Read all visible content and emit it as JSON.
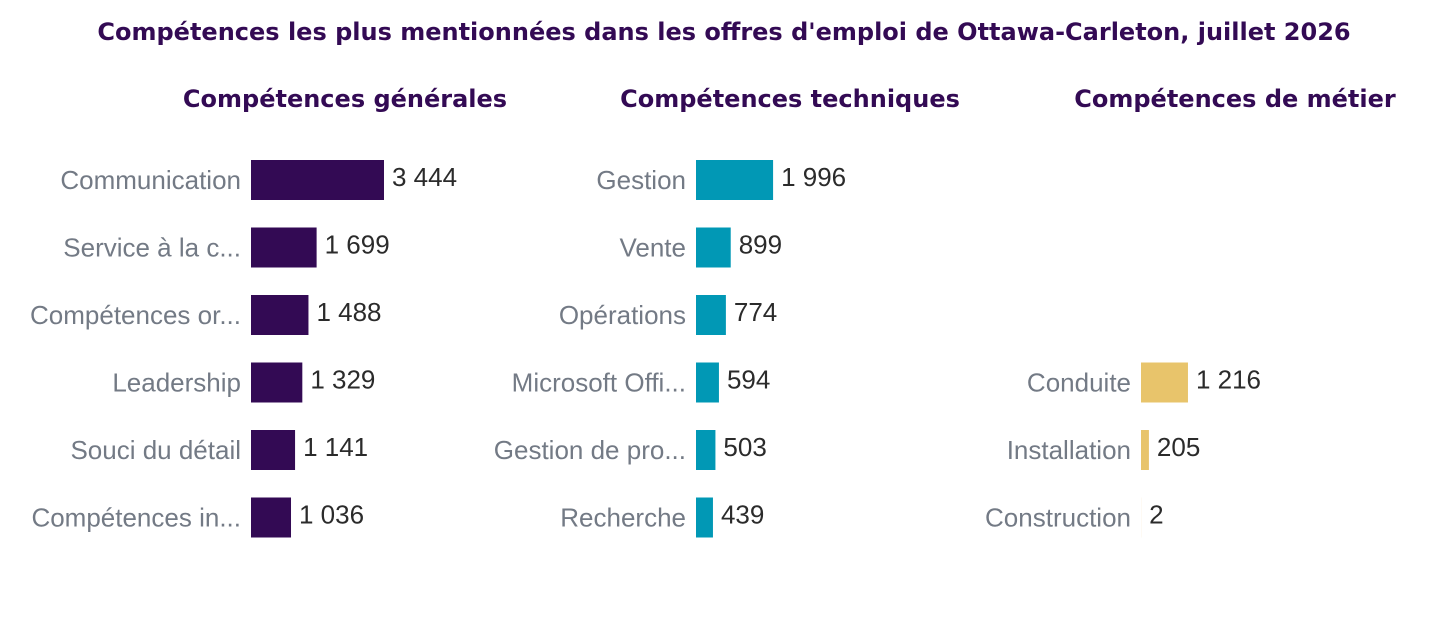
{
  "colors": {
    "title": "#330a54",
    "category_label": "#737a85",
    "value_label": "#2b2b2b",
    "background": "#ffffff"
  },
  "chart_data": {
    "type": "bar",
    "orientation": "horizontal",
    "title": "Compétences les plus mentionnées dans les offres d'emploi de Ottawa-Carleton, juillet 2026",
    "grid": false,
    "shared_x_scale": true,
    "panels": [
      {
        "title": "Compétences générales",
        "color": "#330a54",
        "categories": [
          "Communication",
          "Service à la c...",
          "Compétences or...",
          "Leadership",
          "Souci du détail",
          "Compétences in..."
        ],
        "values": [
          3444,
          1699,
          1488,
          1329,
          1141,
          1036
        ],
        "value_labels": [
          "3 444",
          "1 699",
          "1 488",
          "1 329",
          "1 141",
          "1 036"
        ]
      },
      {
        "title": "Compétences techniques",
        "color": "#0198b5",
        "categories": [
          "Gestion",
          "Vente",
          "Opérations",
          "Microsoft Offi...",
          "Gestion de pro...",
          "Recherche"
        ],
        "values": [
          1996,
          899,
          774,
          594,
          503,
          439
        ],
        "value_labels": [
          "1 996",
          "899",
          "774",
          "594",
          "503",
          "439"
        ]
      },
      {
        "title": "Compétences de métier",
        "color": "#e8c46b",
        "categories": [
          "Conduite",
          "Installation",
          "Construction"
        ],
        "values": [
          1216,
          205,
          2
        ],
        "value_labels": [
          "1 216",
          "205",
          "2"
        ]
      }
    ]
  }
}
